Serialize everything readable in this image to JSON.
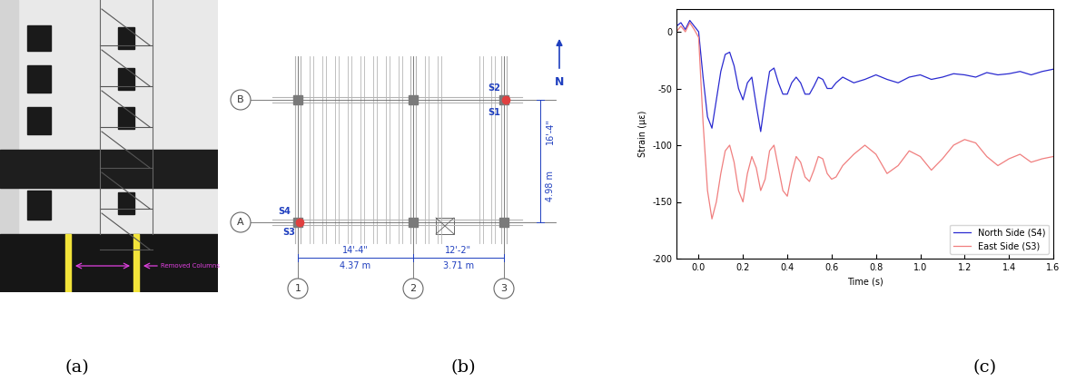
{
  "panel_labels": [
    "(a)",
    "(b)",
    "(c)"
  ],
  "photo": {
    "annotation": "Removed Columns"
  },
  "plan": {
    "grid_rows": [
      "A",
      "B"
    ],
    "grid_columns": [
      "1",
      "2",
      "3"
    ],
    "sensors": [
      "S1",
      "S2",
      "S3",
      "S4"
    ],
    "north": "N",
    "dimensions": [
      [
        "14'-4\"",
        "4.37 m"
      ],
      [
        "12'-2\"",
        "3.71 m"
      ],
      [
        "16'-4\"",
        "4.98 m"
      ]
    ]
  },
  "chart_data": {
    "type": "line",
    "x_label": "Time (s)",
    "y_label": "Strain (µε)",
    "xlim": [
      -0.1,
      1.6
    ],
    "xticks": [
      0.0,
      0.2,
      0.4,
      0.6,
      0.8,
      1.0,
      1.2,
      1.4,
      1.6
    ],
    "ylim": [
      -200,
      20
    ],
    "yticks": [
      -200,
      -150,
      -100,
      -50,
      0
    ],
    "legend": "lower right",
    "x": [
      -0.1,
      -0.08,
      -0.06,
      -0.04,
      -0.02,
      0.0,
      0.02,
      0.04,
      0.06,
      0.08,
      0.1,
      0.12,
      0.14,
      0.16,
      0.18,
      0.2,
      0.22,
      0.24,
      0.26,
      0.28,
      0.3,
      0.32,
      0.34,
      0.36,
      0.38,
      0.4,
      0.42,
      0.44,
      0.46,
      0.48,
      0.5,
      0.52,
      0.54,
      0.56,
      0.58,
      0.6,
      0.62,
      0.65,
      0.7,
      0.75,
      0.8,
      0.85,
      0.9,
      0.95,
      1.0,
      1.05,
      1.1,
      1.15,
      1.2,
      1.25,
      1.3,
      1.35,
      1.4,
      1.45,
      1.5,
      1.55,
      1.6
    ],
    "series": [
      {
        "name": "North Side (S4)",
        "color": "#2a2ad0",
        "values": [
          5,
          8,
          2,
          10,
          5,
          0,
          -40,
          -75,
          -85,
          -60,
          -35,
          -20,
          -18,
          -30,
          -50,
          -60,
          -45,
          -40,
          -65,
          -88,
          -60,
          -35,
          -32,
          -45,
          -55,
          -55,
          -45,
          -40,
          -45,
          -55,
          -55,
          -48,
          -40,
          -42,
          -50,
          -50,
          -45,
          -40,
          -45,
          -42,
          -38,
          -42,
          -45,
          -40,
          -38,
          -42,
          -40,
          -37,
          -38,
          -40,
          -36,
          -38,
          -37,
          -35,
          -38,
          -35,
          -33
        ]
      },
      {
        "name": "East Side (S3)",
        "color": "#f07f7f",
        "values": [
          0,
          5,
          0,
          8,
          2,
          -5,
          -80,
          -140,
          -165,
          -150,
          -125,
          -105,
          -100,
          -115,
          -140,
          -150,
          -125,
          -110,
          -120,
          -140,
          -130,
          -105,
          -100,
          -120,
          -140,
          -145,
          -125,
          -110,
          -115,
          -128,
          -132,
          -122,
          -110,
          -112,
          -125,
          -130,
          -128,
          -118,
          -108,
          -100,
          -108,
          -125,
          -118,
          -105,
          -110,
          -122,
          -112,
          -100,
          -95,
          -98,
          -110,
          -118,
          -112,
          -108,
          -115,
          -112,
          -110
        ]
      }
    ]
  }
}
